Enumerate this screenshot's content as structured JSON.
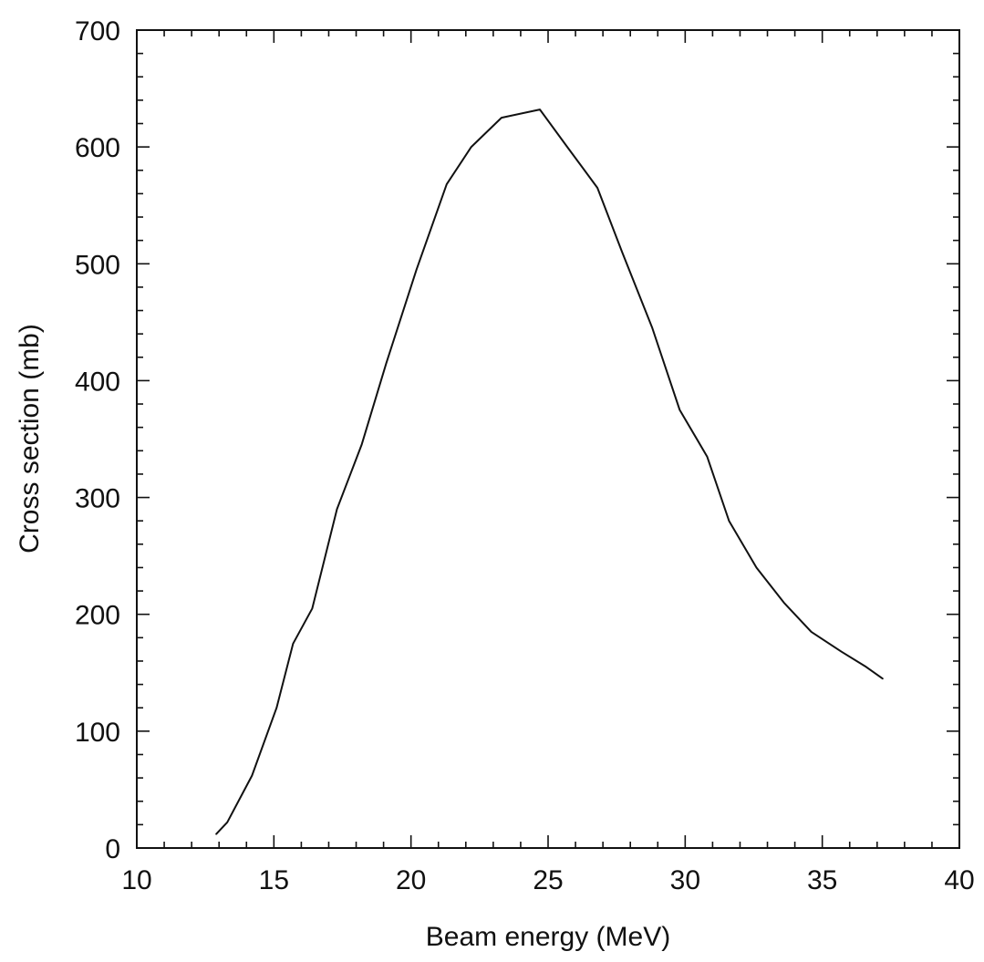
{
  "chart_data": {
    "type": "line",
    "title": "",
    "xlabel": "Beam energy (MeV)",
    "ylabel": "Cross section (mb)",
    "xlim": [
      10,
      40
    ],
    "ylim": [
      0,
      700
    ],
    "x_ticks": [
      10,
      15,
      20,
      25,
      30,
      35,
      40
    ],
    "x_tick_labels": [
      "10",
      "15",
      "20",
      "25",
      "30",
      "35",
      "40"
    ],
    "y_ticks": [
      0,
      100,
      200,
      300,
      400,
      500,
      600,
      700
    ],
    "y_tick_labels": [
      "0",
      "100",
      "200",
      "300",
      "400",
      "500",
      "600",
      "700"
    ],
    "grid": false,
    "legend": "none",
    "series": [
      {
        "color": "#111111",
        "x": [
          12.9,
          13.3,
          14.2,
          15.1,
          15.7,
          16.4,
          17.3,
          18.2,
          19.1,
          20.2,
          21.3,
          22.2,
          23.3,
          24.7,
          25.7,
          26.8,
          27.7,
          28.8,
          29.8,
          30.8,
          31.6,
          32.6,
          33.6,
          34.6,
          35.7,
          36.6,
          37.2
        ],
        "y": [
          12,
          22,
          62,
          120,
          175,
          205,
          290,
          345,
          415,
          495,
          568,
          600,
          625,
          632,
          600,
          565,
          510,
          445,
          375,
          335,
          280,
          240,
          210,
          185,
          168,
          155,
          145
        ]
      }
    ]
  }
}
